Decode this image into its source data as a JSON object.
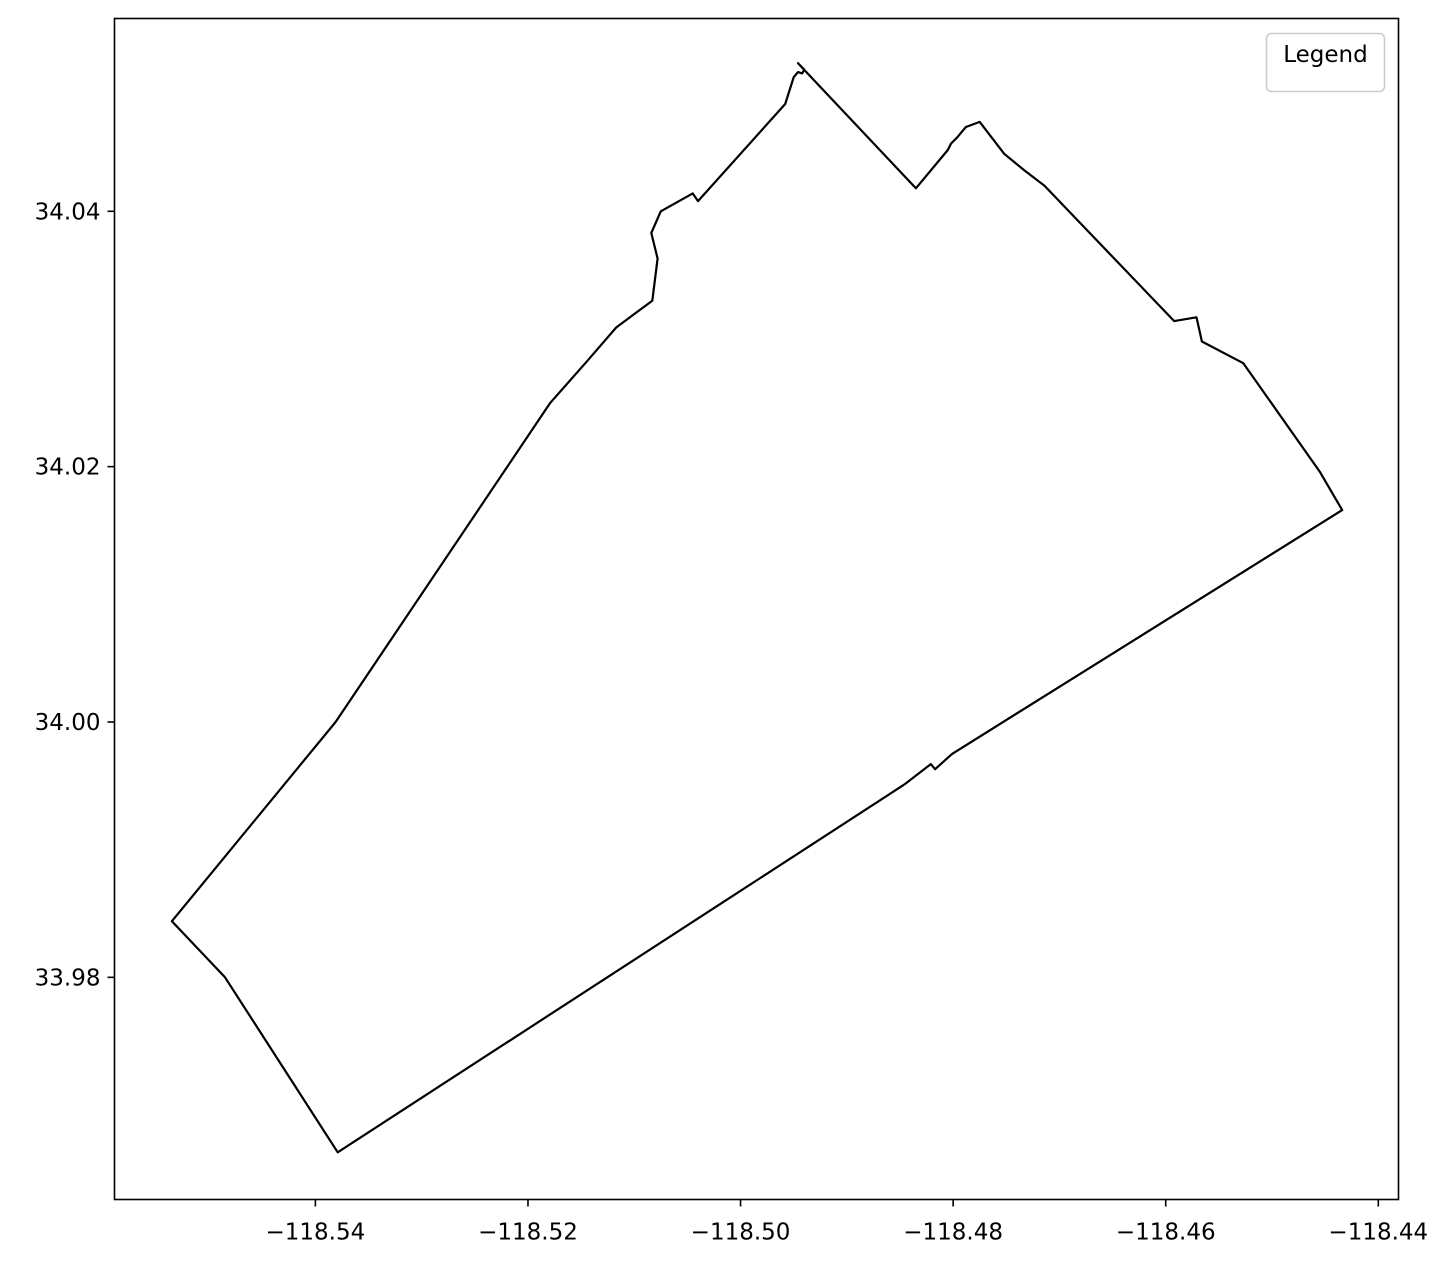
{
  "map": {
    "x_range": [
      -118.5589,
      -118.4381
    ],
    "y_range": [
      33.9626,
      34.0551
    ],
    "x_ticks": [
      {
        "value": -118.54,
        "label": "−118.54"
      },
      {
        "value": -118.52,
        "label": "−118.52"
      },
      {
        "value": -118.5,
        "label": "−118.50"
      },
      {
        "value": -118.48,
        "label": "−118.48"
      },
      {
        "value": -118.46,
        "label": "−118.46"
      },
      {
        "value": -118.44,
        "label": "−118.44"
      }
    ],
    "y_ticks": [
      {
        "value": 34.04,
        "label": "34.04"
      },
      {
        "value": 34.02,
        "label": "34.02"
      },
      {
        "value": 34.0,
        "label": "34.00"
      },
      {
        "value": 33.98,
        "label": "33.98"
      }
    ],
    "legend": {
      "title": "Legend",
      "placement": "top-right"
    },
    "boundary": {
      "stroke": "#000000",
      "fill": "none",
      "coordinates": [
        [
          -118.4946,
          34.0516
        ],
        [
          -118.4835,
          34.0418
        ],
        [
          -118.4805,
          34.0448
        ],
        [
          -118.4802,
          34.0453
        ],
        [
          -118.4796,
          34.0458
        ],
        [
          -118.4792,
          34.0462
        ],
        [
          -118.4788,
          34.0466
        ],
        [
          -118.4775,
          34.047
        ],
        [
          -118.4752,
          34.0445
        ],
        [
          -118.4733,
          34.0432
        ],
        [
          -118.4714,
          34.042
        ],
        [
          -118.4592,
          34.0314
        ],
        [
          -118.4571,
          34.0317
        ],
        [
          -118.4566,
          34.0298
        ],
        [
          -118.4527,
          34.0281
        ],
        [
          -118.4455,
          34.0196
        ],
        [
          -118.4434,
          34.0166
        ],
        [
          -118.4801,
          33.9975
        ],
        [
          -118.4817,
          33.9963
        ],
        [
          -118.4821,
          33.9967
        ],
        [
          -118.4846,
          33.9951
        ],
        [
          -118.5379,
          33.9663
        ],
        [
          -118.5485,
          33.98
        ],
        [
          -118.5535,
          33.9844
        ],
        [
          -118.5381,
          34.0
        ],
        [
          -118.5179,
          34.025
        ],
        [
          -118.5144,
          34.0283
        ],
        [
          -118.5117,
          34.0309
        ],
        [
          -118.5083,
          34.033
        ],
        [
          -118.5078,
          34.0363
        ],
        [
          -118.5084,
          34.0383
        ],
        [
          -118.5075,
          34.04
        ],
        [
          -118.5045,
          34.0414
        ],
        [
          -118.504,
          34.0408
        ],
        [
          -118.4958,
          34.0484
        ],
        [
          -118.495,
          34.0505
        ],
        [
          -118.4946,
          34.0509
        ],
        [
          -118.4942,
          34.0508
        ],
        [
          -118.494,
          34.0511
        ],
        [
          -118.4946,
          34.0516
        ]
      ],
      "detail_path": [
        [
          -118.4946,
          34.0516
        ],
        [
          -118.4944,
          34.0513
        ]
      ]
    }
  }
}
